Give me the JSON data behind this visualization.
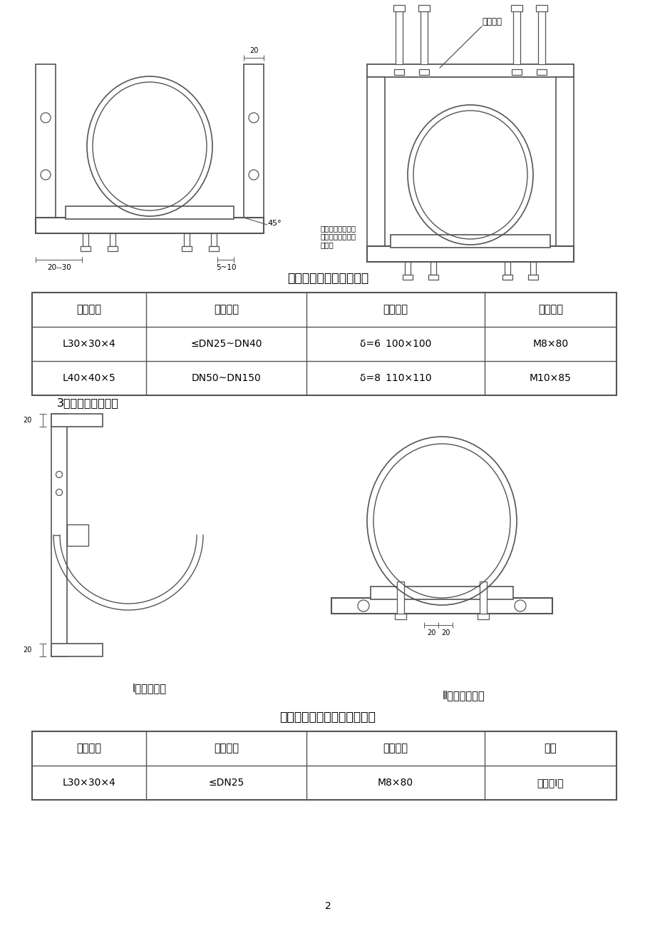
{
  "bg_color": "#ffffff",
  "page_width": 9.2,
  "page_height": 13.02,
  "table1_title": "龙门式支吊架材料适用表",
  "table1_headers": [
    "支架型材",
    "适用管道",
    "倒吊钢板",
    "膨胀螺栓"
  ],
  "table1_rows": [
    [
      "L30×30×4",
      "≤DN25~DN40",
      "δ=6 100×100",
      "M8×80"
    ],
    [
      "L40×40×5",
      "DN50~DN150",
      "δ=8 110×110",
      "M10×85"
    ]
  ],
  "section3_title": "3、　单支角钢支架",
  "table2_title": "单支角钢式支吊架材料适用表",
  "table2_headers": [
    "支架型材",
    "适用管道",
    "膨胀螺栓",
    "备注"
  ],
  "table2_rows": [
    [
      "L30×30×4",
      "≤DN25",
      "M8×80",
      "适用于Ⅰ型"
    ]
  ],
  "label_daodiao": "倒吊钢板",
  "label_45": "45°",
  "label_20_30": "20--30",
  "label_5_10": "5~10",
  "label_note": "（根据角钢大小而\n选定，其余倒角类\n同。）",
  "label_type1": "Ⅰ型（吊式）",
  "label_type2": "Ⅱ型（横担式）",
  "label_20_20a": "20",
  "label_20_20b": "20",
  "label_20_top": "20",
  "page_num": "2",
  "line_color": "#555555",
  "text_color": "#000000"
}
